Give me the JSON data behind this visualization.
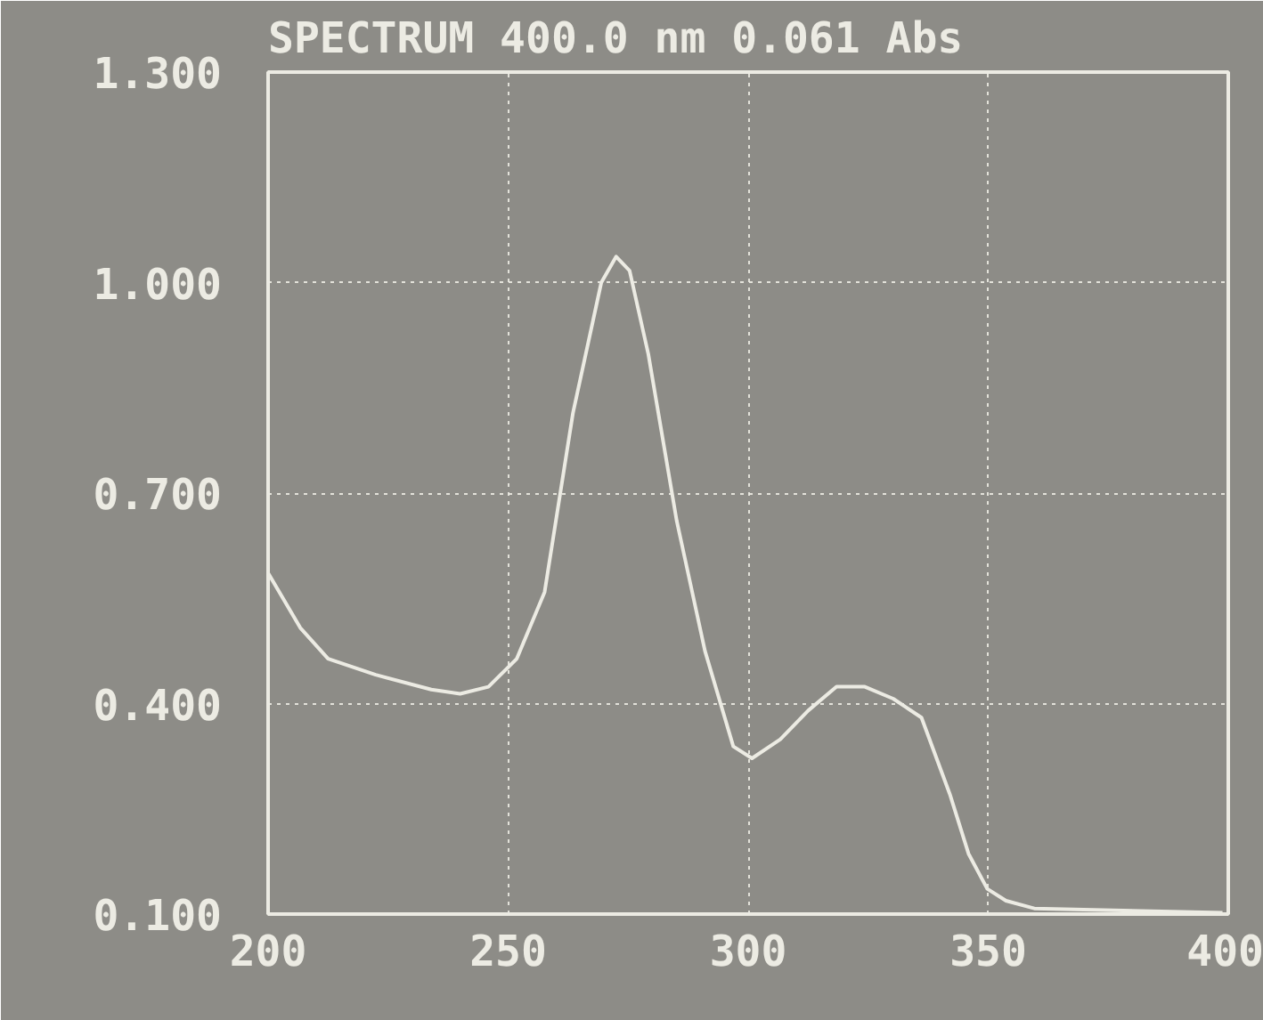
{
  "chart_data": {
    "type": "line",
    "title": "SPECTRUM 400.0  nm    0.061  Abs",
    "x": [
      200,
      206.7,
      212.5,
      222.4,
      234,
      240,
      245.9,
      251.8,
      257.6,
      263.5,
      269.4,
      272.5,
      275.3,
      279.2,
      285.1,
      291,
      296.9,
      300.8,
      306.7,
      312.5,
      318.4,
      324.3,
      330.2,
      336.1,
      342,
      345.9,
      349.8,
      353.7,
      359.6,
      398.8
    ],
    "series": [
      {
        "color": "#ecebe3",
        "values": [
          0.586,
          0.508,
          0.464,
          0.441,
          0.42,
          0.414,
          0.424,
          0.464,
          0.559,
          0.814,
          1.0,
          1.037,
          1.017,
          0.898,
          0.661,
          0.475,
          0.339,
          0.322,
          0.349,
          0.39,
          0.424,
          0.424,
          0.407,
          0.38,
          0.271,
          0.186,
          0.136,
          0.119,
          0.108,
          0.102
        ]
      }
    ],
    "xlim": [
      200,
      400
    ],
    "ylim": [
      0.1,
      1.3
    ],
    "xticks": [
      200,
      250,
      300,
      350,
      400
    ],
    "yticks": [
      {
        "value": 0.1,
        "label": "0.100"
      },
      {
        "value": 0.4,
        "label": "0.400"
      },
      {
        "value": 0.7,
        "label": "0.700"
      },
      {
        "value": 1.0,
        "label": "1.000"
      },
      {
        "value": 1.3,
        "label": "1.300"
      }
    ],
    "grid": true,
    "line_style": "solid",
    "marker": "none"
  }
}
